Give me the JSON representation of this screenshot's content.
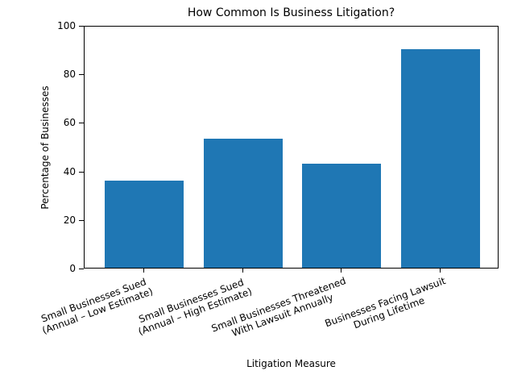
{
  "chart_data": {
    "type": "bar",
    "title": "How Common Is Business Litigation?",
    "xlabel": "Litigation Measure",
    "ylabel": "Percentage of Businesses",
    "ylim": [
      0,
      100
    ],
    "yticks": [
      "0",
      "20",
      "40",
      "60",
      "80",
      "100"
    ],
    "grid": false,
    "legend": null,
    "bar_color": "#1f77b4",
    "categories": [
      "Small Businesses Sued\n(Annual – Low Estimate)",
      "Small Businesses Sued\n(Annual – High Estimate)",
      "Small Businesses Threatened\nWith Lawsuit Annually",
      "Businesses Facing Lawsuit\nDuring Lifetime"
    ],
    "category_lines": [
      [
        "Small Businesses Sued",
        "(Annual – Low Estimate)"
      ],
      [
        "Small Businesses Sued",
        "(Annual – High Estimate)"
      ],
      [
        "Small Businesses Threatened",
        "With Lawsuit Annually"
      ],
      [
        "Businesses Facing Lawsuit",
        "During Lifetime"
      ]
    ],
    "values": [
      36,
      53,
      43,
      90
    ]
  }
}
